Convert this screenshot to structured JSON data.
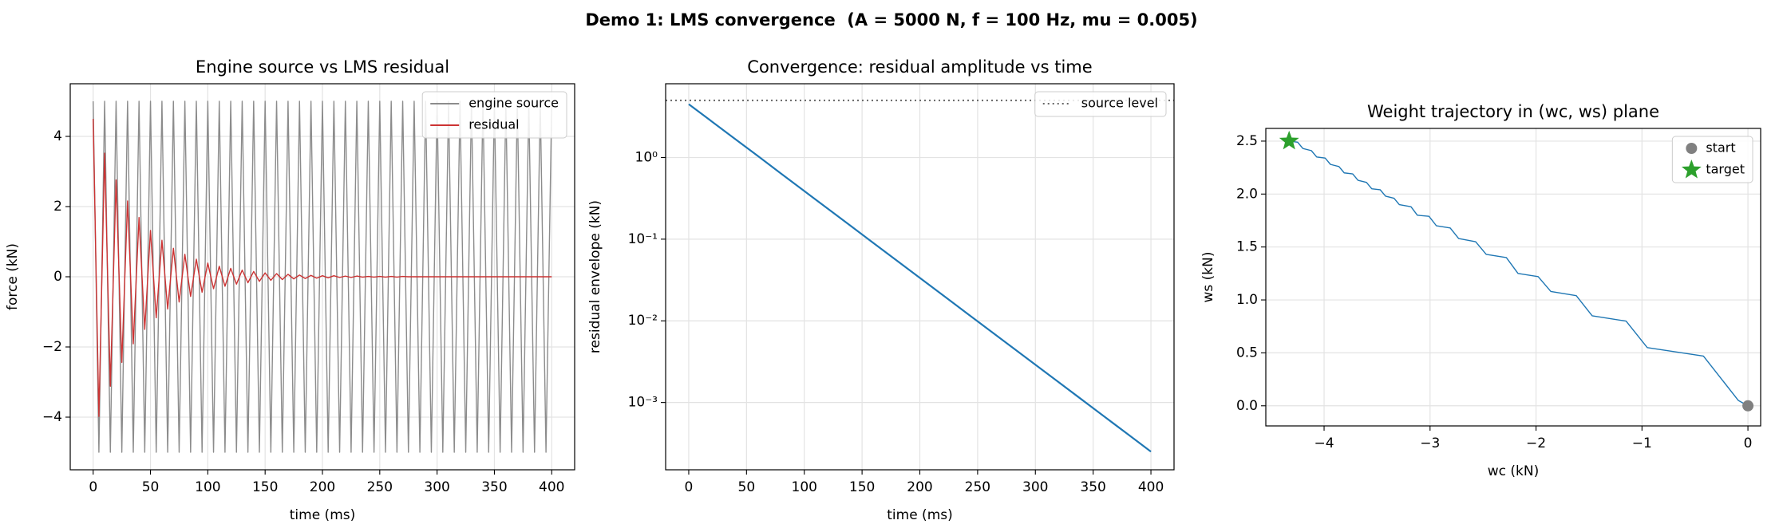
{
  "title": "Demo 1: LMS convergence  (A = 5000 N, f = 100 Hz, mu = 0.005)",
  "chart_data": [
    {
      "type": "line",
      "title": "Engine source vs LMS residual",
      "x_label": "time (ms)",
      "y_label": "force (kN)",
      "x": [
        0,
        5,
        10,
        15,
        20,
        25,
        30,
        35,
        40,
        45,
        50,
        55,
        60,
        65,
        70,
        75,
        80,
        85,
        90,
        95,
        100,
        105,
        110,
        115,
        120,
        125,
        130,
        135,
        140,
        145,
        150,
        155,
        160,
        165,
        170,
        175,
        180,
        185,
        190,
        195,
        200,
        205,
        210,
        215,
        220,
        225,
        230,
        235,
        240,
        245,
        250,
        255,
        260,
        265,
        270,
        275,
        280,
        285,
        290,
        295,
        300,
        305,
        310,
        315,
        320,
        325,
        330,
        335,
        340,
        345,
        350,
        355,
        360,
        365,
        370,
        375,
        380,
        385,
        390,
        395,
        400
      ],
      "series": [
        {
          "name": "engine source",
          "color": "#8c8c8c",
          "values": [
            5,
            -5,
            5,
            -5,
            5,
            -5,
            5,
            -5,
            5,
            -5,
            5,
            -5,
            5,
            -5,
            5,
            -5,
            5,
            -5,
            5,
            -5,
            5,
            -5,
            5,
            -5,
            5,
            -5,
            5,
            -5,
            5,
            -5,
            5,
            -5,
            5,
            -5,
            5,
            -5,
            5,
            -5,
            5,
            -5,
            5,
            -5,
            5,
            -5,
            5,
            -5,
            5,
            -5,
            5,
            -5,
            5,
            -5,
            5,
            -5,
            5,
            -5,
            5,
            -5,
            5,
            -5,
            5,
            -5,
            5,
            -5,
            5,
            -5,
            5,
            -5,
            5,
            -5,
            5,
            -5,
            5,
            -5,
            5,
            -5,
            5,
            -5,
            5,
            -5,
            5
          ]
        },
        {
          "name": "residual",
          "color": "#cc3333",
          "values": [
            4.5,
            -3.98,
            3.52,
            -3.12,
            2.76,
            -2.44,
            2.16,
            -1.91,
            1.69,
            -1.5,
            1.32,
            -1.17,
            1.04,
            -0.92,
            0.81,
            -0.72,
            0.64,
            -0.56,
            0.5,
            -0.44,
            0.39,
            -0.34,
            0.3,
            -0.27,
            0.24,
            -0.21,
            0.19,
            -0.17,
            0.15,
            -0.13,
            0.11,
            -0.1,
            0.09,
            -0.08,
            0.07,
            -0.06,
            0.05,
            -0.05,
            0.04,
            -0.04,
            0.03,
            -0.03,
            0.03,
            -0.02,
            0.02,
            -0.02,
            0.02,
            -0.01,
            0.01,
            -0.01,
            0.01,
            -0.01,
            0.01,
            -0.01,
            0.01,
            0,
            0,
            0,
            0,
            0,
            0,
            0,
            0,
            0,
            0,
            0,
            0,
            0,
            0,
            0,
            0,
            0,
            0,
            0,
            0,
            0,
            0,
            0,
            0,
            0,
            0
          ]
        }
      ],
      "xlim": [
        -20,
        420
      ],
      "xticks": [
        0,
        50,
        100,
        150,
        200,
        250,
        300,
        350,
        400
      ],
      "ylim": [
        -5.5,
        5.5
      ],
      "yticks": [
        {
          "value": -4,
          "label": "−4"
        },
        {
          "value": -2,
          "label": "−2"
        },
        0,
        2,
        4
      ],
      "grid": true,
      "legend": "upper right"
    },
    {
      "type": "line",
      "title": "Convergence: residual amplitude vs time",
      "x_label": "time (ms)",
      "y_label": "residual envelope (kN)",
      "x": [
        0,
        20,
        40,
        60,
        80,
        100,
        120,
        140,
        160,
        180,
        200,
        220,
        240,
        260,
        280,
        300,
        320,
        340,
        360,
        380,
        400
      ],
      "series": [
        {
          "color": "#1f77b4",
          "values": [
            4.5,
            2.76,
            1.69,
            1.04,
            0.634,
            0.389,
            0.238,
            0.146,
            0.0894,
            0.0548,
            0.0336,
            0.0206,
            0.0126,
            0.00772,
            0.00473,
            0.0029,
            0.00178,
            0.00109,
            0.000667,
            0.000409,
            0.00025
          ]
        }
      ],
      "hlines": [
        {
          "name": "source level",
          "value": 5,
          "color": "#666666",
          "dash": "dotted"
        }
      ],
      "xlim": [
        -20,
        420
      ],
      "xticks": [
        0,
        50,
        100,
        150,
        200,
        250,
        300,
        350,
        400
      ],
      "ylim": [
        0.00015,
        8
      ],
      "log_y": true,
      "yticks": [
        {
          "value": 0.001,
          "label": "10⁻³"
        },
        {
          "value": 0.01,
          "label": "10⁻²"
        },
        {
          "value": 0.1,
          "label": "10⁻¹"
        },
        {
          "value": 1,
          "label": "10⁰"
        }
      ],
      "grid": true,
      "legend": "upper right"
    },
    {
      "type": "scatter",
      "title": "Weight trajectory in (wc, ws) plane",
      "x_label": "wc (kN)",
      "y_label": "ws (kN)",
      "series": [
        {
          "color": "#1f77b4",
          "x": [
            0,
            -0.09,
            -0.42,
            -0.95,
            -1.15,
            -1.47,
            -1.62,
            -1.86,
            -1.98,
            -2.17,
            -2.28,
            -2.47,
            -2.57,
            -2.73,
            -2.81,
            -2.94,
            -3.01,
            -3.12,
            -3.18,
            -3.29,
            -3.34,
            -3.42,
            -3.47,
            -3.55,
            -3.6,
            -3.68,
            -3.73,
            -3.81,
            -3.86,
            -3.94,
            -3.99,
            -4.07,
            -4.12,
            -4.2,
            -4.25,
            -4.33
          ],
          "values": [
            0,
            0.05,
            0.47,
            0.55,
            0.8,
            0.85,
            1.04,
            1.08,
            1.22,
            1.25,
            1.4,
            1.43,
            1.55,
            1.58,
            1.68,
            1.7,
            1.79,
            1.8,
            1.88,
            1.9,
            1.96,
            1.98,
            2.04,
            2.05,
            2.11,
            2.13,
            2.19,
            2.2,
            2.26,
            2.28,
            2.34,
            2.35,
            2.41,
            2.43,
            2.49,
            2.5
          ]
        },
        {
          "name": "start",
          "color": "#808080",
          "marker": "circle",
          "x": [
            0
          ],
          "values": [
            0
          ]
        },
        {
          "name": "target",
          "color": "#2ca02c",
          "marker": "star",
          "x": [
            -4.33
          ],
          "values": [
            2.5
          ]
        }
      ],
      "xlim": [
        -4.55,
        0.12
      ],
      "xticks": [
        {
          "value": -4,
          "label": "−4"
        },
        {
          "value": -3,
          "label": "−3"
        },
        {
          "value": -2,
          "label": "−2"
        },
        {
          "value": -1,
          "label": "−1"
        },
        0
      ],
      "ylim": [
        -0.19,
        2.62
      ],
      "yticks": [
        {
          "value": 0,
          "label": "0.0"
        },
        {
          "value": 0.5,
          "label": "0.5"
        },
        {
          "value": 1,
          "label": "1.0"
        },
        {
          "value": 1.5,
          "label": "1.5"
        },
        {
          "value": 2,
          "label": "2.0"
        },
        {
          "value": 2.5,
          "label": "2.5"
        }
      ],
      "grid": true,
      "legend": "upper right"
    }
  ]
}
